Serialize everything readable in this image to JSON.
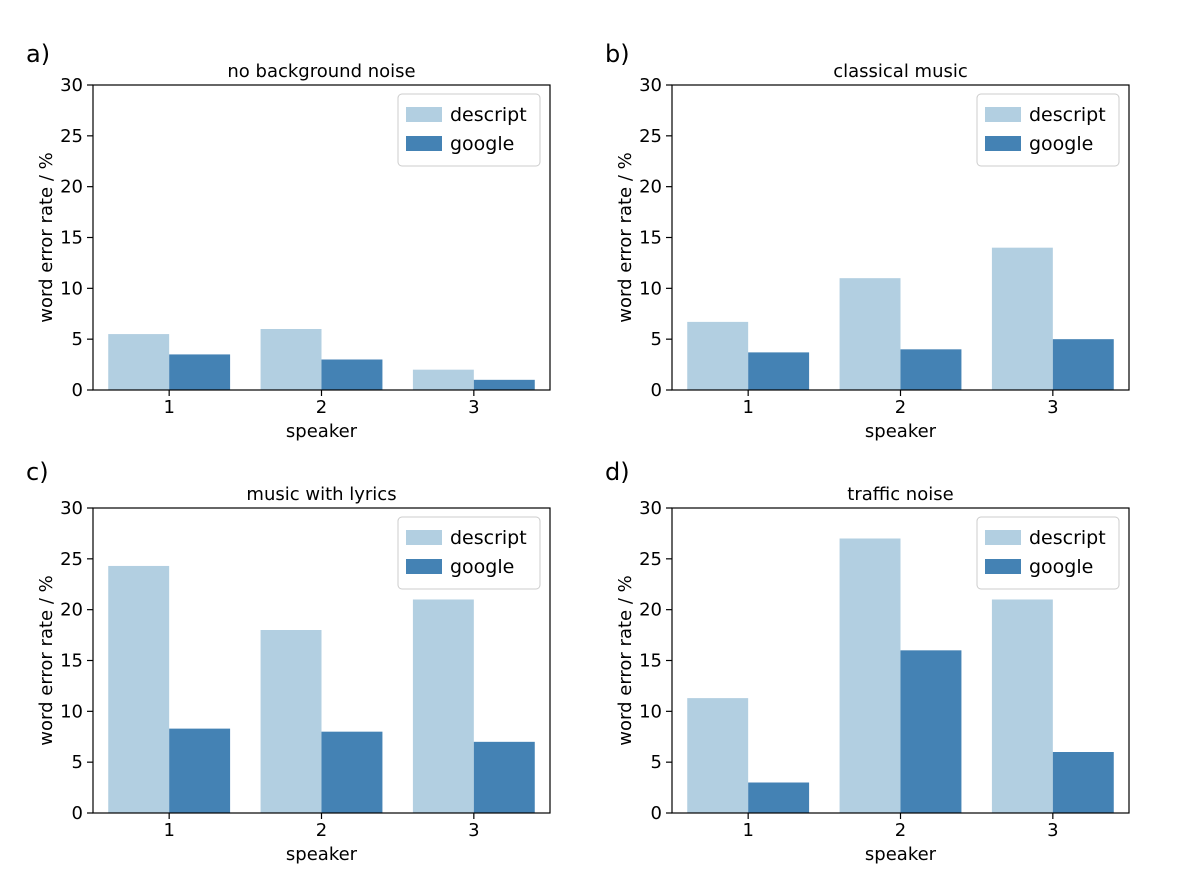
{
  "chart_data": [
    {
      "type": "bar",
      "panel_label": "a)",
      "title": "no background noise",
      "xlabel": "speaker",
      "ylabel": "word error rate / %",
      "categories": [
        "1",
        "2",
        "3"
      ],
      "ylim": [
        0,
        30
      ],
      "yticks": [
        "0",
        "5",
        "10",
        "15",
        "20",
        "25",
        "30"
      ],
      "legend_position": "top-right",
      "series": [
        {
          "name": "descript",
          "values": [
            5.5,
            6.0,
            2.0
          ]
        },
        {
          "name": "google",
          "values": [
            3.5,
            3.0,
            1.0
          ]
        }
      ]
    },
    {
      "type": "bar",
      "panel_label": "b)",
      "title": "classical music",
      "xlabel": "speaker",
      "ylabel": "word error rate / %",
      "categories": [
        "1",
        "2",
        "3"
      ],
      "ylim": [
        0,
        30
      ],
      "yticks": [
        "0",
        "5",
        "10",
        "15",
        "20",
        "25",
        "30"
      ],
      "legend_position": "top-right",
      "series": [
        {
          "name": "descript",
          "values": [
            6.7,
            11.0,
            14.0
          ]
        },
        {
          "name": "google",
          "values": [
            3.7,
            4.0,
            5.0
          ]
        }
      ]
    },
    {
      "type": "bar",
      "panel_label": "c)",
      "title": "music with lyrics",
      "xlabel": "speaker",
      "ylabel": "word error rate / %",
      "categories": [
        "1",
        "2",
        "3"
      ],
      "ylim": [
        0,
        30
      ],
      "yticks": [
        "0",
        "5",
        "10",
        "15",
        "20",
        "25",
        "30"
      ],
      "legend_position": "top-right",
      "series": [
        {
          "name": "descript",
          "values": [
            24.3,
            18.0,
            21.0
          ]
        },
        {
          "name": "google",
          "values": [
            8.3,
            8.0,
            7.0
          ]
        }
      ]
    },
    {
      "type": "bar",
      "panel_label": "d)",
      "title": "traffic noise",
      "xlabel": "speaker",
      "ylabel": "word error rate / %",
      "categories": [
        "1",
        "2",
        "3"
      ],
      "ylim": [
        0,
        30
      ],
      "yticks": [
        "0",
        "5",
        "10",
        "15",
        "20",
        "25",
        "30"
      ],
      "legend_position": "top-right",
      "series": [
        {
          "name": "descript",
          "values": [
            11.3,
            27.0,
            21.0
          ]
        },
        {
          "name": "google",
          "values": [
            3.0,
            16.0,
            6.0
          ]
        }
      ]
    }
  ],
  "colors": {
    "descript": "#b2cfe1",
    "google": "#4482b4",
    "axis": "#000000",
    "legend_border": "#cccccc"
  }
}
